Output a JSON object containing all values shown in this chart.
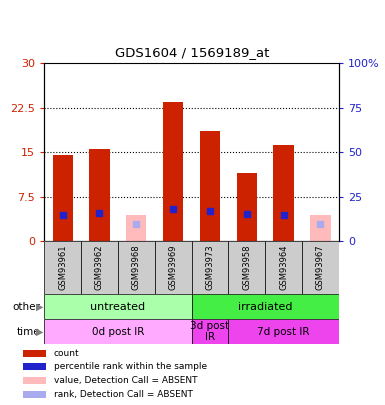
{
  "title": "GDS1604 / 1569189_at",
  "samples": [
    "GSM93961",
    "GSM93962",
    "GSM93968",
    "GSM93969",
    "GSM93973",
    "GSM93958",
    "GSM93964",
    "GSM93967"
  ],
  "count_values": [
    14.5,
    15.5,
    null,
    23.5,
    18.5,
    11.5,
    16.2,
    null
  ],
  "count_absent": [
    null,
    null,
    4.5,
    null,
    null,
    null,
    null,
    4.5
  ],
  "rank_values": [
    15.0,
    16.2,
    null,
    18.0,
    16.8,
    15.3,
    15.0,
    null
  ],
  "rank_absent": [
    null,
    null,
    10.0,
    null,
    null,
    null,
    null,
    10.0
  ],
  "ylim_left": [
    0,
    30
  ],
  "ylim_right": [
    0,
    100
  ],
  "yticks_left": [
    0,
    7.5,
    15.0,
    22.5,
    30
  ],
  "yticks_right": [
    0,
    25,
    50,
    75,
    100
  ],
  "ytick_labels_left": [
    "0",
    "7.5",
    "15",
    "22.5",
    "30"
  ],
  "ytick_labels_right": [
    "0",
    "25",
    "50",
    "75",
    "100%"
  ],
  "bar_color": "#cc2200",
  "bar_absent_color": "#ffbbbb",
  "rank_color": "#2222cc",
  "rank_absent_color": "#aaaaee",
  "groups": [
    {
      "label": "untreated",
      "start": 0,
      "end": 4,
      "color": "#aaffaa"
    },
    {
      "label": "irradiated",
      "start": 4,
      "end": 8,
      "color": "#44ee44"
    }
  ],
  "time_groups": [
    {
      "label": "0d post IR",
      "start": 0,
      "end": 4,
      "color": "#ffaaff"
    },
    {
      "label": "3d post\nIR",
      "start": 4,
      "end": 5,
      "color": "#ee44ee"
    },
    {
      "label": "7d post IR",
      "start": 5,
      "end": 8,
      "color": "#ee44ee"
    }
  ],
  "legend_items": [
    {
      "color": "#cc2200",
      "label": "count"
    },
    {
      "color": "#2222cc",
      "label": "percentile rank within the sample"
    },
    {
      "color": "#ffbbbb",
      "label": "value, Detection Call = ABSENT"
    },
    {
      "color": "#aaaaee",
      "label": "rank, Detection Call = ABSENT"
    }
  ],
  "sample_bg": "#cccccc",
  "left_label_color": "#cc2200",
  "right_label_color": "#2222cc"
}
